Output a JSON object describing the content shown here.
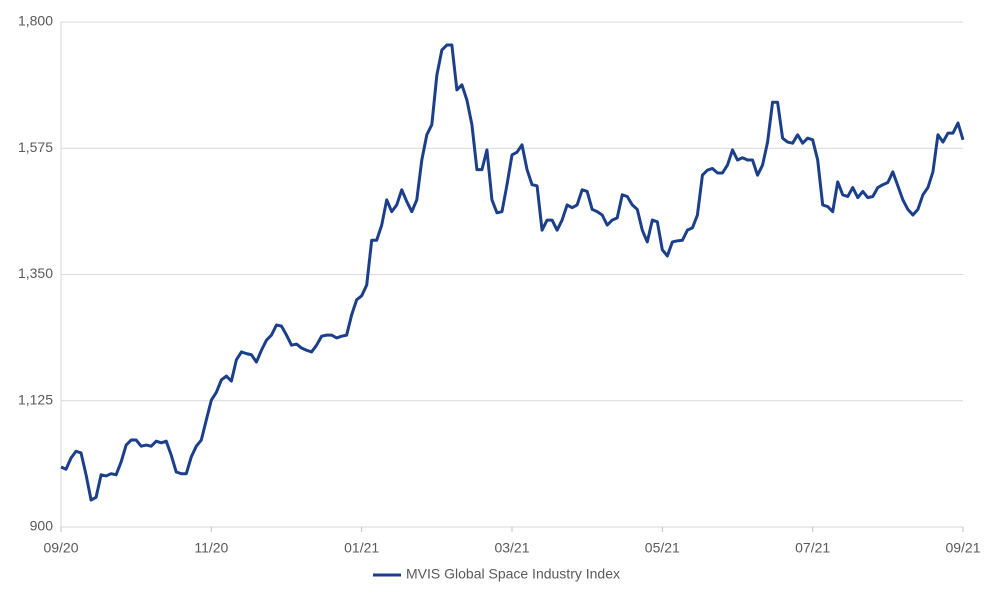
{
  "chart_data": {
    "type": "line",
    "categories": [
      "09/20",
      null,
      null,
      null,
      null,
      null,
      null,
      null,
      null,
      null,
      null,
      null,
      null,
      null,
      null,
      null,
      null,
      null,
      null,
      null,
      null,
      null,
      null,
      null,
      null,
      null,
      null,
      null,
      null,
      null,
      "11/20",
      null,
      null,
      null,
      null,
      null,
      null,
      null,
      null,
      null,
      null,
      null,
      null,
      null,
      null,
      null,
      null,
      null,
      null,
      null,
      null,
      null,
      null,
      null,
      null,
      null,
      null,
      null,
      null,
      null,
      "01/21",
      null,
      null,
      null,
      null,
      null,
      null,
      null,
      null,
      null,
      null,
      null,
      null,
      null,
      null,
      null,
      null,
      null,
      null,
      null,
      null,
      null,
      null,
      null,
      null,
      null,
      null,
      null,
      null,
      null,
      "03/21",
      null,
      null,
      null,
      null,
      null,
      null,
      null,
      null,
      null,
      null,
      null,
      null,
      null,
      null,
      null,
      null,
      null,
      null,
      null,
      null,
      null,
      null,
      null,
      null,
      null,
      null,
      null,
      null,
      null,
      "05/21",
      null,
      null,
      null,
      null,
      null,
      null,
      null,
      null,
      null,
      null,
      null,
      null,
      null,
      null,
      null,
      null,
      null,
      null,
      null,
      null,
      null,
      null,
      null,
      null,
      null,
      null,
      null,
      null,
      null,
      "07/21",
      null,
      null,
      null,
      null,
      null,
      null,
      null,
      null,
      null,
      null,
      null,
      null,
      null,
      null,
      null,
      null,
      null,
      null,
      null,
      null,
      null,
      null,
      null,
      null,
      null,
      null,
      null,
      null,
      null,
      "09/21"
    ],
    "series": [
      {
        "name": "MVIS Global Space Industry Index",
        "color": "#1c3f8c",
        "values": [
          1007,
          1003,
          1023,
          1035,
          1032,
          993,
          948,
          953,
          993,
          991,
          995,
          993,
          1016,
          1046,
          1055,
          1055,
          1044,
          1046,
          1044,
          1053,
          1050,
          1053,
          1028,
          998,
          995,
          995,
          1025,
          1044,
          1055,
          1091,
          1126,
          1140,
          1162,
          1169,
          1160,
          1198,
          1212,
          1209,
          1207,
          1194,
          1215,
          1233,
          1242,
          1260,
          1258,
          1242,
          1224,
          1226,
          1219,
          1215,
          1212,
          1224,
          1240,
          1242,
          1242,
          1237,
          1240,
          1242,
          1278,
          1305,
          1312,
          1331,
          1411,
          1411,
          1438,
          1483,
          1462,
          1474,
          1501,
          1480,
          1462,
          1483,
          1554,
          1599,
          1617,
          1705,
          1750,
          1759,
          1759,
          1679,
          1688,
          1661,
          1617,
          1537,
          1537,
          1572,
          1483,
          1460,
          1462,
          1510,
          1563,
          1568,
          1581,
          1537,
          1510,
          1508,
          1429,
          1447,
          1447,
          1429,
          1447,
          1474,
          1469,
          1474,
          1501,
          1498,
          1466,
          1462,
          1456,
          1438,
          1447,
          1451,
          1492,
          1489,
          1474,
          1466,
          1429,
          1408,
          1447,
          1444,
          1394,
          1383,
          1408,
          1410,
          1411,
          1429,
          1433,
          1456,
          1527,
          1536,
          1539,
          1531,
          1531,
          1545,
          1572,
          1554,
          1558,
          1554,
          1554,
          1527,
          1545,
          1586,
          1657,
          1657,
          1593,
          1586,
          1584,
          1599,
          1584,
          1593,
          1590,
          1554,
          1474,
          1471,
          1462,
          1515,
          1492,
          1489,
          1505,
          1487,
          1498,
          1487,
          1489,
          1505,
          1510,
          1514,
          1533,
          1508,
          1483,
          1466,
          1456,
          1466,
          1492,
          1505,
          1533,
          1599,
          1586,
          1602,
          1602,
          1620,
          1590
        ]
      }
    ],
    "ylim": [
      900,
      1800
    ],
    "yticks": [
      900,
      {
        "value": 1125,
        "label": "1,125"
      },
      {
        "value": 1350,
        "label": "1,350"
      },
      {
        "value": 1575,
        "label": "1,575"
      },
      {
        "value": 1800,
        "label": "1,800"
      }
    ],
    "grid": true,
    "legend": "bottom"
  }
}
